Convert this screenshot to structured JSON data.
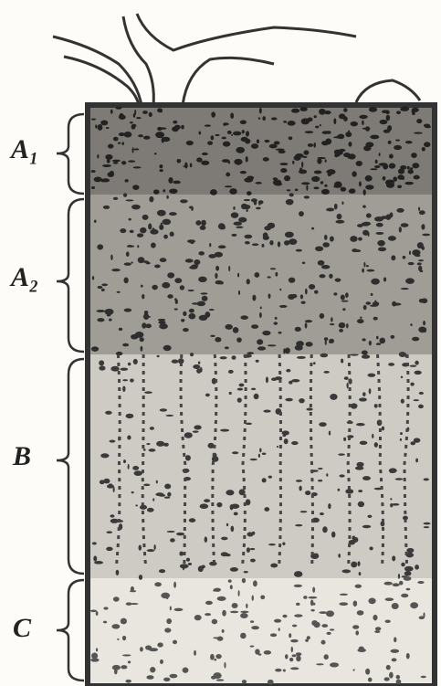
{
  "horizons": [
    {
      "label": "A₁"
    },
    {
      "label": "A₂"
    },
    {
      "label": "B"
    },
    {
      "label": "C"
    }
  ]
}
